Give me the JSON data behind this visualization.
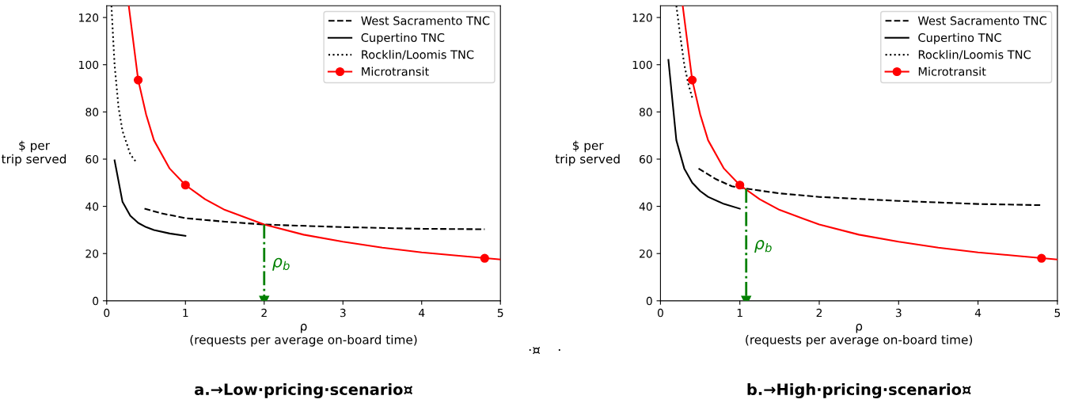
{
  "chart_data": [
    {
      "type": "line",
      "ylabel": "$ per\ntrip served",
      "xlabel": "ρ\n(requests per average on-board time)",
      "xlim": [
        0,
        5
      ],
      "xticks": [
        0,
        1,
        2,
        3,
        4,
        5
      ],
      "ylim": [
        0,
        125
      ],
      "yticks": [
        0,
        20,
        40,
        60,
        80,
        100,
        120
      ],
      "grid": false,
      "legend": "top right",
      "annotations": [
        "a.→Low·pricing·scenario¤",
        "·¤    ·",
        "ρ$_{b}$"
      ],
      "series": [
        {
          "name": "West Sacramento TNC",
          "color": "#000000",
          "line_style": "dashed",
          "x": [
            0.48,
            0.7,
            1,
            1.5,
            2,
            3,
            4,
            4.8
          ],
          "values": [
            39,
            37,
            35,
            33.5,
            32.3,
            31.2,
            30.5,
            30.3
          ]
        },
        {
          "name": "Cupertino TNC",
          "color": "#000000",
          "line_style": "solid",
          "x": [
            0.1,
            0.2,
            0.3,
            0.4,
            0.5,
            0.6,
            0.8,
            1.0
          ],
          "values": [
            59.5,
            42,
            36,
            33,
            31.2,
            30,
            28.5,
            27.5
          ]
        },
        {
          "name": "Rocklin/Loomis TNC",
          "color": "#000000",
          "line_style": "dotted",
          "x": [
            0.06,
            0.1,
            0.15,
            0.2,
            0.3,
            0.38
          ],
          "values": [
            125,
            100,
            82,
            72,
            62,
            58.5
          ]
        },
        {
          "name": "Microtransit",
          "color": "#ff0000",
          "line_style": "solid",
          "x": [
            0.28,
            0.4,
            0.5,
            0.6,
            0.8,
            1,
            1.25,
            1.5,
            2,
            2.5,
            3,
            3.5,
            4,
            4.5,
            5
          ],
          "values": [
            125,
            93.5,
            79,
            68,
            56,
            49,
            43,
            38.5,
            32.3,
            28,
            25,
            22.5,
            20.5,
            19,
            17.5
          ]
        },
        {
          "type": "scatter",
          "color": "#ff0000",
          "marker": "circle",
          "x": [
            0.4,
            1,
            4.8
          ],
          "values": [
            93.5,
            49,
            18
          ]
        },
        {
          "color": "#008000",
          "line_style": "dashdot",
          "marker": "triangle",
          "x": [
            2,
            2
          ],
          "values": [
            32.3,
            0
          ]
        }
      ]
    },
    {
      "type": "line",
      "ylabel": "$ per\ntrip served",
      "xlabel": "ρ\n(requests per average on-board time)",
      "xlim": [
        0,
        5
      ],
      "xticks": [
        0,
        1,
        2,
        3,
        4,
        5
      ],
      "ylim": [
        0,
        125
      ],
      "yticks": [
        0,
        20,
        40,
        60,
        80,
        100,
        120
      ],
      "grid": false,
      "legend": "top right",
      "annotations": [
        "b.→High·pricing·scenario¤",
        "ρ$_{b}$"
      ],
      "series": [
        {
          "name": "West Sacramento TNC",
          "color": "#000000",
          "line_style": "dashed",
          "x": [
            0.48,
            0.7,
            0.9,
            1.08,
            1.5,
            2,
            3,
            4,
            4.8
          ],
          "values": [
            56,
            51.5,
            48.5,
            47.5,
            45.5,
            44,
            42.3,
            41,
            40.5
          ]
        },
        {
          "name": "Cupertino TNC",
          "color": "#000000",
          "line_style": "solid",
          "x": [
            0.1,
            0.2,
            0.3,
            0.4,
            0.5,
            0.6,
            0.8,
            1.0
          ],
          "values": [
            102,
            68,
            56,
            50,
            46.5,
            44,
            41,
            39
          ]
        },
        {
          "name": "Rocklin/Loomis TNC",
          "color": "#000000",
          "line_style": "dotted",
          "x": [
            0.2,
            0.25,
            0.3,
            0.35,
            0.4
          ],
          "values": [
            125,
            112,
            100,
            92,
            86
          ]
        },
        {
          "name": "Microtransit",
          "color": "#ff0000",
          "line_style": "solid",
          "x": [
            0.28,
            0.4,
            0.5,
            0.6,
            0.8,
            1,
            1.25,
            1.5,
            2,
            2.5,
            3,
            3.5,
            4,
            4.5,
            5
          ],
          "values": [
            125,
            93.5,
            79,
            68,
            56,
            49,
            43,
            38.5,
            32.3,
            28,
            25,
            22.5,
            20.5,
            19,
            17.5
          ]
        },
        {
          "type": "scatter",
          "color": "#ff0000",
          "marker": "circle",
          "x": [
            0.4,
            1,
            4.8
          ],
          "values": [
            93.5,
            49,
            18
          ]
        },
        {
          "color": "#008000",
          "line_style": "dashdot",
          "marker": "triangle",
          "x": [
            1.08,
            1.08
          ],
          "values": [
            47.5,
            0
          ]
        }
      ]
    }
  ]
}
